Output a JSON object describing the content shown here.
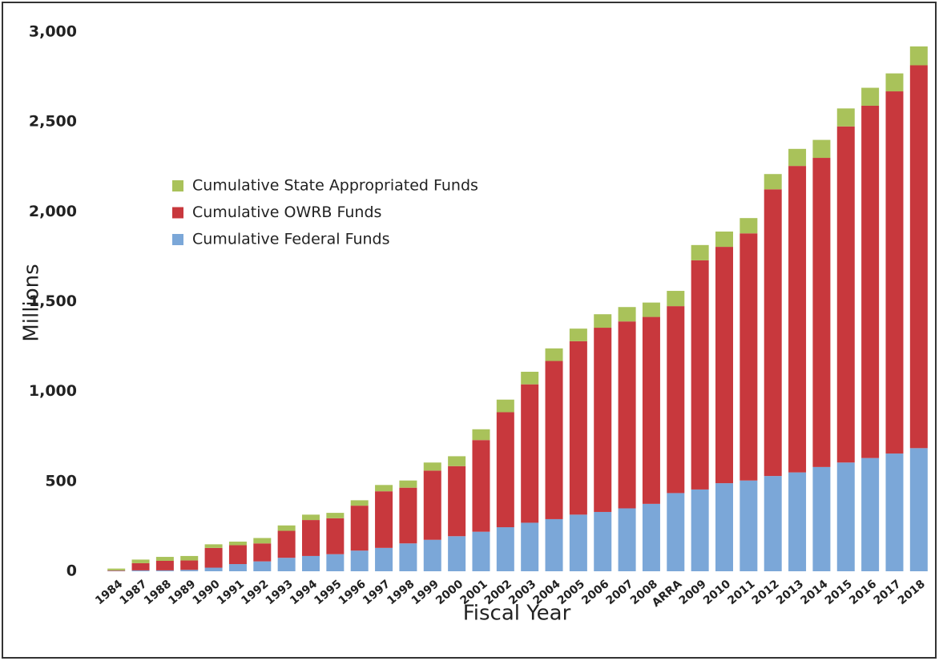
{
  "chart_data": {
    "type": "stacked_bar",
    "x_label": "Fiscal Year",
    "y_label": "Millions",
    "categories": [
      "1984",
      "1987",
      "1988",
      "1989",
      "1990",
      "1991",
      "1992",
      "1993",
      "1994",
      "1995",
      "1996",
      "1997",
      "1998",
      "1999",
      "2000",
      "2001",
      "2002",
      "2003",
      "2004",
      "2005",
      "2006",
      "2007",
      "2008",
      "ARRA",
      "2009",
      "2010",
      "2011",
      "2012",
      "2013",
      "2014",
      "2015",
      "2016",
      "2017",
      "2018"
    ],
    "series": [
      {
        "name": "Cumulative Federal Funds",
        "color": "#7ba7d8",
        "values": [
          2,
          5,
          5,
          8,
          20,
          40,
          55,
          75,
          85,
          95,
          115,
          130,
          155,
          175,
          195,
          220,
          245,
          270,
          290,
          315,
          330,
          350,
          375,
          435,
          455,
          490,
          505,
          530,
          550,
          580,
          605,
          630,
          655,
          685
        ]
      },
      {
        "name": "Cumulative OWRB Funds",
        "color": "#c8383d",
        "values": [
          3,
          40,
          53,
          52,
          110,
          105,
          100,
          150,
          200,
          200,
          250,
          315,
          310,
          385,
          390,
          510,
          640,
          770,
          880,
          965,
          1025,
          1040,
          1040,
          1040,
          1275,
          1315,
          1375,
          1595,
          1705,
          1720,
          1870,
          1960,
          2015,
          2130
        ]
      },
      {
        "name": "Cumulative State Appropriated Funds",
        "color": "#a9c25a",
        "values": [
          10,
          20,
          22,
          25,
          20,
          20,
          30,
          30,
          30,
          30,
          30,
          35,
          40,
          45,
          55,
          60,
          70,
          70,
          70,
          70,
          75,
          80,
          80,
          85,
          85,
          85,
          85,
          85,
          95,
          100,
          100,
          100,
          100,
          105
        ]
      }
    ],
    "ylim": [
      0,
      3000
    ],
    "yticks": [
      0,
      500,
      {
        "value": 1000,
        "label": "1,000"
      },
      {
        "value": 1500,
        "label": "1,500"
      },
      {
        "value": 2000,
        "label": "2,000"
      },
      {
        "value": 2500,
        "label": "2,500"
      },
      {
        "value": 3000,
        "label": "3,000"
      }
    ],
    "grid": false,
    "legend": "upper left"
  }
}
